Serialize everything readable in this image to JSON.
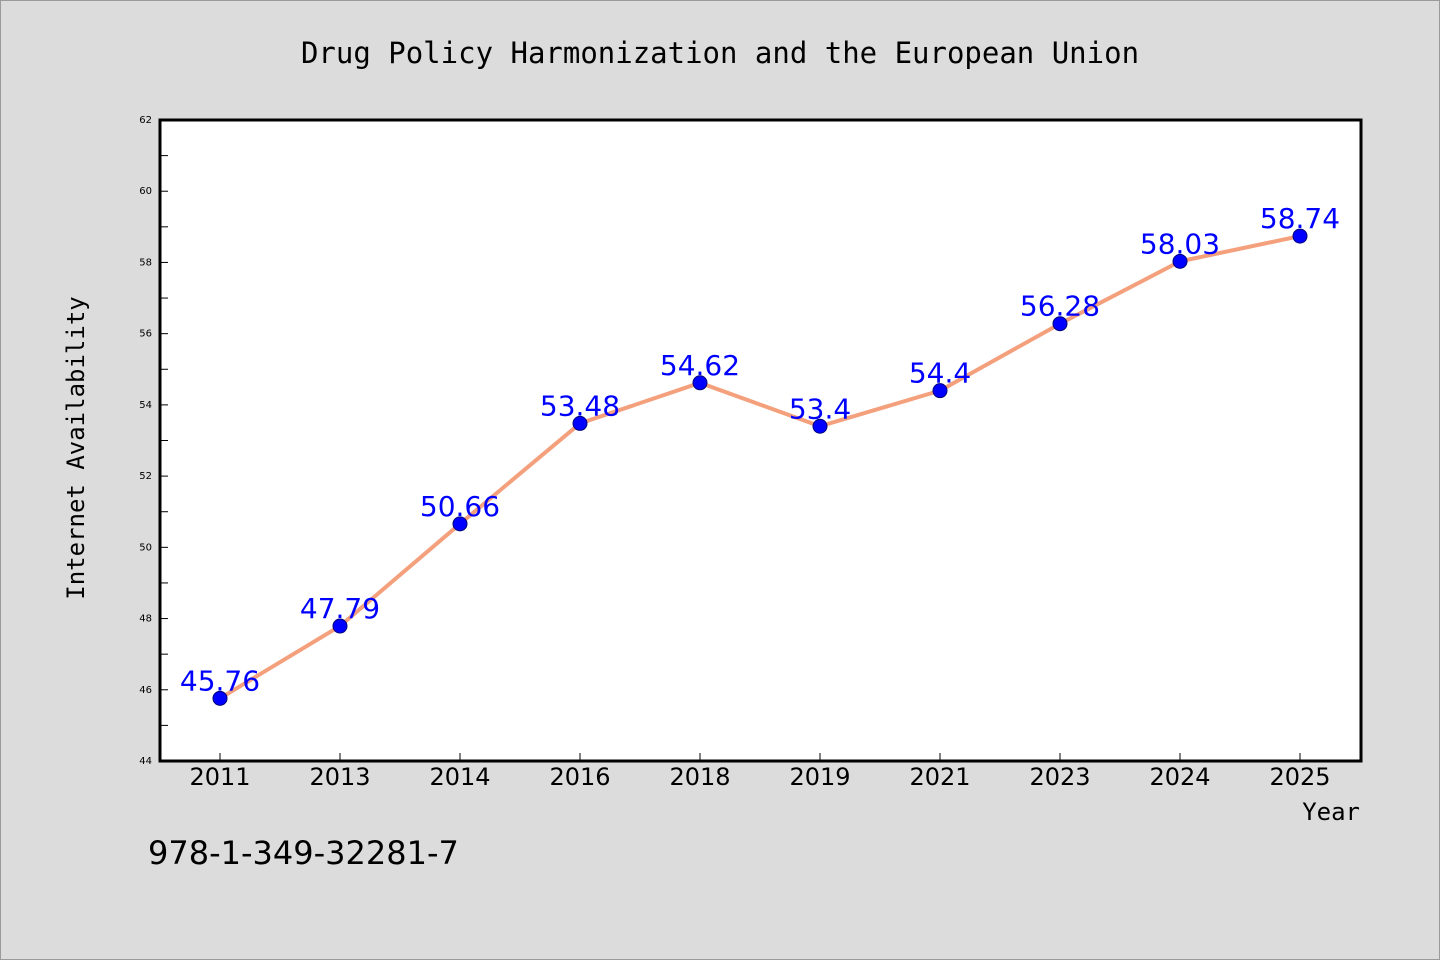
{
  "chart_data": {
    "type": "line",
    "title": "Drug Policy Harmonization and the European Union",
    "xlabel": "Year",
    "ylabel": "Internet Availability",
    "categories": [
      "2011",
      "2013",
      "2014",
      "2016",
      "2018",
      "2019",
      "2021",
      "2023",
      "2024",
      "2025"
    ],
    "series": [
      {
        "values": [
          45.76,
          47.79,
          50.66,
          53.48,
          54.62,
          53.4,
          54.4,
          56.28,
          58.03,
          58.74
        ],
        "line_color": "#f4a07c",
        "marker_color": "#0000ff"
      }
    ],
    "data_labels": [
      "45.76",
      "47.79",
      "50.66",
      "53.48",
      "54.62",
      "53.4",
      "54.4",
      "56.28",
      "58.03",
      "58.74"
    ],
    "ylim": [
      44,
      62
    ],
    "yticks": [
      "44",
      "46",
      "48",
      "50",
      "52",
      "54",
      "56",
      "58",
      "60",
      "62"
    ],
    "grid": false,
    "legend": "none"
  },
  "annotation": "978-1-349-32281-7",
  "colors": {
    "background": "#dcdcdc",
    "plot_background": "#ffffff",
    "label_color": "#0000ff"
  }
}
